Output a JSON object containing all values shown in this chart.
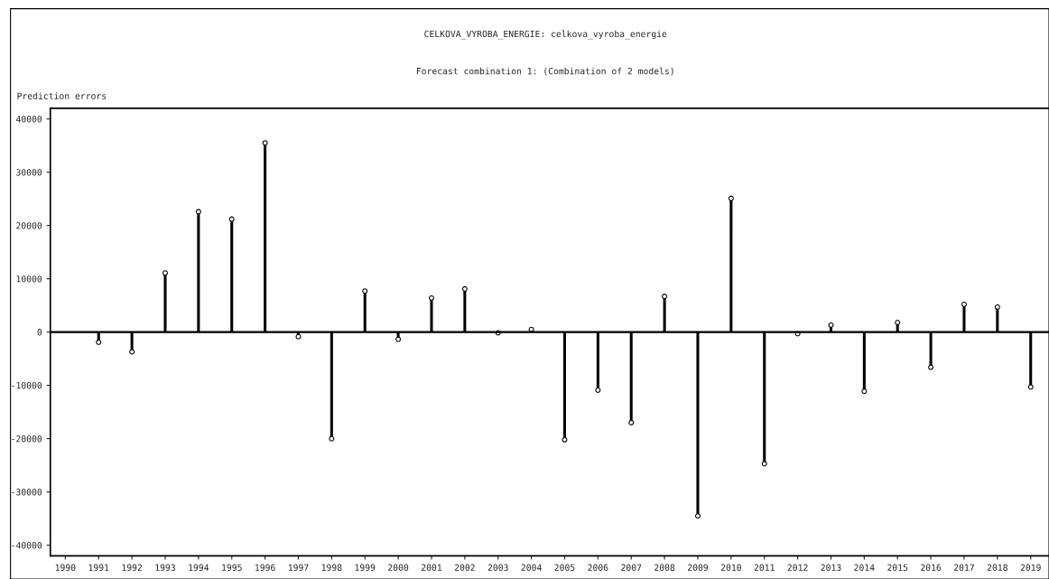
{
  "chart_data": {
    "type": "lollipop",
    "title": "CELKOVA_VYROBA_ENERGIE: celkova_vyroba_energie",
    "subtitle": "Forecast combination 1: (Combination of 2 models)",
    "ylabel": "Prediction errors",
    "categories": [
      "1990",
      "1991",
      "1992",
      "1993",
      "1994",
      "1995",
      "1996",
      "1997",
      "1998",
      "1999",
      "2000",
      "2001",
      "2002",
      "2003",
      "2004",
      "2005",
      "2006",
      "2007",
      "2008",
      "2009",
      "2010",
      "2011",
      "2012",
      "2013",
      "2014",
      "2015",
      "2016",
      "2017",
      "2018",
      "2019"
    ],
    "series": [
      {
        "color": "#000000",
        "values": [
          null,
          -1900,
          -3700,
          11100,
          22600,
          21200,
          35500,
          -850,
          -20000,
          7700,
          -1350,
          6400,
          8100,
          -150,
          500,
          -20200,
          -10900,
          -17000,
          6700,
          -34500,
          25100,
          -24700,
          -300,
          1300,
          -11100,
          1800,
          -6600,
          5200,
          4700,
          -10300
        ]
      }
    ],
    "ylim": [
      -42000,
      42000
    ],
    "yticks": [
      -40000,
      -30000,
      -20000,
      -10000,
      0,
      10000,
      20000,
      30000,
      40000
    ],
    "marker": "circle",
    "ref_lines": [
      {
        "axis": "y",
        "value": 0,
        "color": "#000000"
      }
    ],
    "grid": false,
    "legend": false
  }
}
